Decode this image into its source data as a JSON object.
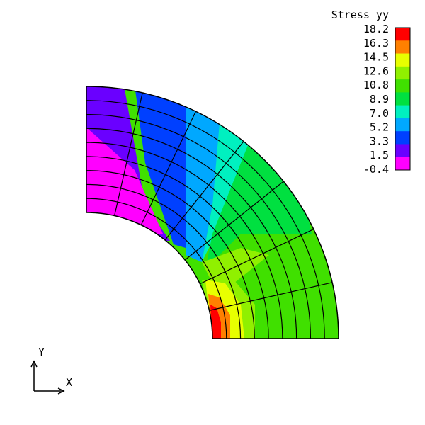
{
  "legend": {
    "title": "Stress yy",
    "values": [
      "18.2",
      "16.3",
      "14.5",
      "12.6",
      "10.8",
      "8.9",
      "7.0",
      "5.2",
      "3.3",
      "1.5",
      "-0.4"
    ],
    "colors": [
      "#ff0000",
      "#ff8000",
      "#e8ff00",
      "#90f000",
      "#40e000",
      "#00e040",
      "#00f0c0",
      "#00a8ff",
      "#0040ff",
      "#6a00ff",
      "#ff00ff"
    ]
  },
  "axes": {
    "y_label": "Y",
    "x_label": "X"
  },
  "mesh": {
    "radial_divisions": 9,
    "angular_divisions": 7,
    "line_color": "#000000"
  }
}
